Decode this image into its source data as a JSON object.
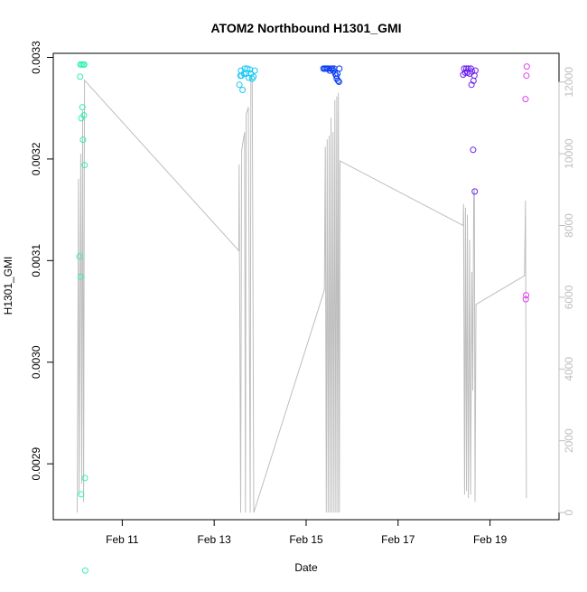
{
  "chart_data": {
    "type": "scatter",
    "title": "ATOM2 Northbound H1301_GMI",
    "xlabel": "Date",
    "ylabel": "H1301_GMI",
    "y2label": "",
    "xlim": [
      "2016-02-09 12:00",
      "2016-02-20 12:00"
    ],
    "ylim": [
      0.002845,
      0.003304
    ],
    "y2lim": [
      -200,
      12800
    ],
    "x_ticks": [
      {
        "date": "2016-02-11",
        "label": "Feb 11"
      },
      {
        "date": "2016-02-13",
        "label": "Feb 13"
      },
      {
        "date": "2016-02-15",
        "label": "Feb 15"
      },
      {
        "date": "2016-02-17",
        "label": "Feb 17"
      },
      {
        "date": "2016-02-19",
        "label": "Feb 19"
      }
    ],
    "y_ticks": [
      {
        "value": 0.0029,
        "label": "0.0029"
      },
      {
        "value": 0.003,
        "label": "0.0030"
      },
      {
        "value": 0.0031,
        "label": "0.0031"
      },
      {
        "value": 0.0032,
        "label": "0.0032"
      },
      {
        "value": 0.0033,
        "label": "0.0033"
      }
    ],
    "y2_ticks": [
      {
        "value": 0,
        "label": "0"
      },
      {
        "value": 2000,
        "label": "2000"
      },
      {
        "value": 4000,
        "label": "4000"
      },
      {
        "value": 6000,
        "label": "6000"
      },
      {
        "value": 8000,
        "label": "8000"
      },
      {
        "value": 10000,
        "label": "10000"
      },
      {
        "value": 12000,
        "label": "12000"
      }
    ],
    "grid": false,
    "colors": {
      "axis": "#000000",
      "right_axis": "#bebebe",
      "altitude_line": "#bebebe"
    },
    "series": [
      {
        "color": "#2ef0b4",
        "points": [
          [
            "2016-02-10 02:10",
            0.003293
          ],
          [
            "2016-02-10 02:50",
            0.003293
          ],
          [
            "2016-02-10 03:40",
            0.003293
          ],
          [
            "2016-02-10 04:10",
            0.003293
          ],
          [
            "2016-02-10 02:00",
            0.003281
          ],
          [
            "2016-02-10 03:10",
            0.003251
          ],
          [
            "2016-02-10 04:00",
            0.003243
          ],
          [
            "2016-02-10 02:40",
            0.00324
          ],
          [
            "2016-02-10 03:30",
            0.003219
          ],
          [
            "2016-02-10 04:20",
            0.003194
          ],
          [
            "2016-02-10 01:40",
            0.003104
          ],
          [
            "2016-02-10 02:20",
            0.003084
          ],
          [
            "2016-02-10 04:30",
            0.002886
          ],
          [
            "2016-02-10 02:30",
            0.00287
          ],
          [
            "2016-02-10 04:40",
            0.002795
          ],
          [
            "2016-02-10 03:20",
            0.002767
          ]
        ]
      },
      {
        "color": "#17c8f2",
        "points": [
          [
            "2016-02-13 13:10",
            0.003273
          ],
          [
            "2016-02-13 13:40",
            0.003282
          ],
          [
            "2016-02-13 14:00",
            0.003287
          ],
          [
            "2016-02-13 14:20",
            0.003282
          ],
          [
            "2016-02-13 14:50",
            0.003268
          ],
          [
            "2016-02-13 15:30",
            0.003284
          ],
          [
            "2016-02-13 16:00",
            0.003289
          ],
          [
            "2016-02-13 16:40",
            0.003284
          ],
          [
            "2016-02-13 17:20",
            0.003289
          ],
          [
            "2016-02-13 18:00",
            0.00328
          ],
          [
            "2016-02-13 18:40",
            0.003288
          ],
          [
            "2016-02-13 19:10",
            0.003284
          ],
          [
            "2016-02-13 19:50",
            0.003279
          ],
          [
            "2016-02-13 20:30",
            0.003281
          ],
          [
            "2016-02-13 21:10",
            0.003287
          ]
        ]
      },
      {
        "color": "#0a3cf2",
        "points": [
          [
            "2016-02-15 09:00",
            0.003289
          ],
          [
            "2016-02-15 09:40",
            0.003289
          ],
          [
            "2016-02-15 10:20",
            0.003289
          ],
          [
            "2016-02-15 11:00",
            0.003289
          ],
          [
            "2016-02-15 11:40",
            0.003289
          ],
          [
            "2016-02-15 12:20",
            0.003287
          ],
          [
            "2016-02-15 13:00",
            0.003289
          ],
          [
            "2016-02-15 13:40",
            0.003289
          ],
          [
            "2016-02-15 14:10",
            0.003287
          ],
          [
            "2016-02-15 14:40",
            0.003289
          ],
          [
            "2016-02-15 15:10",
            0.003284
          ],
          [
            "2016-02-15 15:40",
            0.003282
          ],
          [
            "2016-02-15 16:00",
            0.003279
          ],
          [
            "2016-02-15 16:20",
            0.003284
          ],
          [
            "2016-02-15 16:40",
            0.003277
          ],
          [
            "2016-02-15 17:10",
            0.003276
          ],
          [
            "2016-02-15 17:20",
            0.003289
          ]
        ]
      },
      {
        "color": "#6a1ef0",
        "points": [
          [
            "2016-02-18 10:00",
            0.003283
          ],
          [
            "2016-02-18 10:30",
            0.003289
          ],
          [
            "2016-02-18 11:00",
            0.003285
          ],
          [
            "2016-02-18 11:40",
            0.003289
          ],
          [
            "2016-02-18 12:10",
            0.003285
          ],
          [
            "2016-02-18 12:40",
            0.003289
          ],
          [
            "2016-02-18 13:20",
            0.003284
          ],
          [
            "2016-02-18 14:00",
            0.003289
          ],
          [
            "2016-02-18 14:40",
            0.003286
          ],
          [
            "2016-02-18 15:20",
            0.003277
          ],
          [
            "2016-02-18 15:50",
            0.003282
          ],
          [
            "2016-02-18 16:20",
            0.003287
          ],
          [
            "2016-02-18 15:10",
            0.003209
          ],
          [
            "2016-02-18 16:00",
            0.003168
          ],
          [
            "2016-02-18 14:20",
            0.003273
          ]
        ]
      },
      {
        "color": "#e040f0",
        "points": [
          [
            "2016-02-19 19:10",
            0.003291
          ],
          [
            "2016-02-19 19:00",
            0.003282
          ],
          [
            "2016-02-19 18:30",
            0.003259
          ],
          [
            "2016-02-19 18:40",
            0.003062
          ],
          [
            "2016-02-19 18:50",
            0.003066
          ]
        ]
      }
    ],
    "altitude_series": {
      "color": "#bebebe",
      "points": [
        [
          "2016-02-10 00:30",
          0
        ],
        [
          "2016-02-10 01:10",
          9300
        ],
        [
          "2016-02-10 01:30",
          500
        ],
        [
          "2016-02-10 02:20",
          10000
        ],
        [
          "2016-02-10 02:50",
          800
        ],
        [
          "2016-02-10 03:20",
          11200
        ],
        [
          "2016-02-10 03:50",
          300
        ],
        [
          "2016-02-10 04:20",
          12050
        ],
        [
          "2016-02-13 12:50",
          7300
        ],
        [
          "2016-02-13 13:00",
          9700
        ],
        [
          "2016-02-13 13:50",
          0
        ],
        [
          "2016-02-13 14:20",
          10100
        ],
        [
          "2016-02-13 15:50",
          10600
        ],
        [
          "2016-02-13 16:20",
          0
        ],
        [
          "2016-02-13 16:40",
          11100
        ],
        [
          "2016-02-13 17:50",
          11300
        ],
        [
          "2016-02-13 18:50",
          0
        ],
        [
          "2016-02-13 19:10",
          12100
        ],
        [
          "2016-02-13 19:50",
          12100
        ],
        [
          "2016-02-13 20:40",
          0
        ],
        [
          "2016-02-15 09:30",
          6200
        ],
        [
          "2016-02-15 10:00",
          10200
        ],
        [
          "2016-02-15 10:30",
          0
        ],
        [
          "2016-02-15 11:00",
          10400
        ],
        [
          "2016-02-15 11:30",
          0
        ],
        [
          "2016-02-15 12:00",
          10500
        ],
        [
          "2016-02-15 12:30",
          0
        ],
        [
          "2016-02-15 13:00",
          11000
        ],
        [
          "2016-02-15 13:30",
          0
        ],
        [
          "2016-02-15 14:00",
          10600
        ],
        [
          "2016-02-15 14:30",
          0
        ],
        [
          "2016-02-15 15:00",
          11500
        ],
        [
          "2016-02-15 15:30",
          0
        ],
        [
          "2016-02-15 16:00",
          11600
        ],
        [
          "2016-02-15 16:30",
          0
        ],
        [
          "2016-02-15 16:50",
          11700
        ],
        [
          "2016-02-15 17:20",
          0
        ],
        [
          "2016-02-15 17:40",
          9800
        ],
        [
          "2016-02-18 10:00",
          8000
        ],
        [
          "2016-02-18 10:10",
          8600
        ],
        [
          "2016-02-18 10:40",
          500
        ],
        [
          "2016-02-18 11:10",
          8500
        ],
        [
          "2016-02-18 11:40",
          600
        ],
        [
          "2016-02-18 12:10",
          8300
        ],
        [
          "2016-02-18 12:40",
          400
        ],
        [
          "2016-02-18 13:20",
          7600
        ],
        [
          "2016-02-18 13:50",
          500
        ],
        [
          "2016-02-18 14:30",
          6700
        ],
        [
          "2016-02-18 15:00",
          3400
        ],
        [
          "2016-02-18 15:30",
          8900
        ],
        [
          "2016-02-18 15:50",
          9000
        ],
        [
          "2016-02-18 16:10",
          300
        ],
        [
          "2016-02-18 16:40",
          5800
        ],
        [
          "2016-02-19 18:00",
          6600
        ],
        [
          "2016-02-19 18:30",
          8700
        ],
        [
          "2016-02-19 19:00",
          400
        ]
      ]
    }
  }
}
